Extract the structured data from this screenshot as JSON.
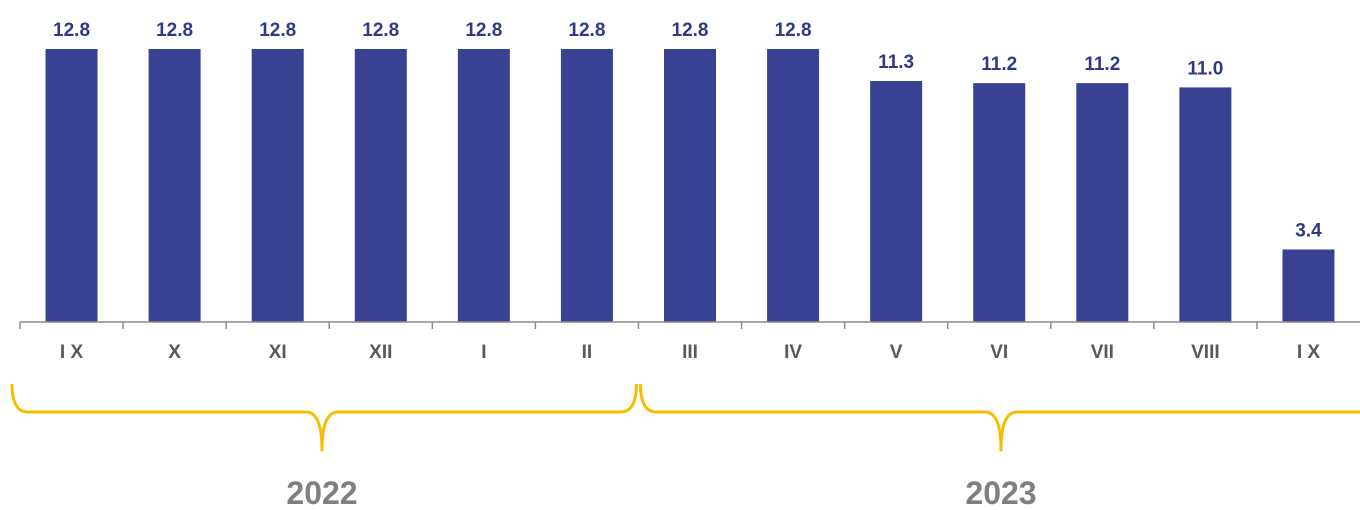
{
  "colors": {
    "bar": "#384192",
    "value_label": "#2e3a87",
    "axis": "#8c8c8c",
    "tick_label": "#595959",
    "bracket": "#f5be00",
    "year_label": "#7f7f7f"
  },
  "chart_data": {
    "type": "bar",
    "title": "",
    "xlabel": "",
    "ylabel": "",
    "categories": [
      "I X",
      "X",
      "XI",
      "XII",
      "I",
      "II",
      "III",
      "IV",
      "V",
      "VI",
      "VII",
      "VIII",
      "I X"
    ],
    "values": [
      12.8,
      12.8,
      12.8,
      12.8,
      12.8,
      12.8,
      12.8,
      12.8,
      11.3,
      11.2,
      11.2,
      11.0,
      3.4
    ],
    "value_labels": [
      "12.8",
      "12.8",
      "12.8",
      "12.8",
      "12.8",
      "12.8",
      "12.8",
      "12.8",
      "11.3",
      "11.2",
      "11.2",
      "11.0",
      "3.4"
    ],
    "ylim": [
      0,
      12.8
    ],
    "grid": false,
    "legend": "none",
    "year_groups": [
      {
        "label": "2022",
        "first_category": 0,
        "last_category": 5
      },
      {
        "label": "2023",
        "first_category": 6,
        "last_category": 12
      }
    ]
  }
}
